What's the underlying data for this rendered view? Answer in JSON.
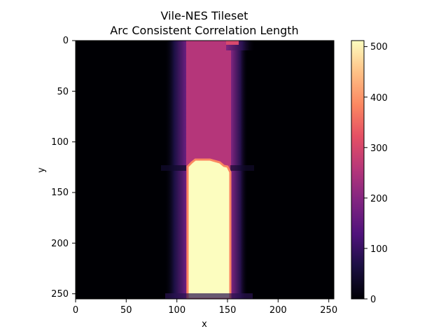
{
  "chart_data": {
    "type": "heatmap",
    "title": "Vile-NES Tileset",
    "subtitle": "Arc Consistent Correlation Length",
    "xlabel": "x",
    "ylabel": "y",
    "xlim": [
      0,
      255
    ],
    "ylim": [
      255,
      0
    ],
    "x_ticks": [
      0,
      50,
      100,
      150,
      200,
      250
    ],
    "y_ticks": [
      0,
      50,
      100,
      150,
      200,
      250
    ],
    "colormap": "magma",
    "colorbar": {
      "range": [
        0,
        512
      ],
      "ticks": [
        0,
        100,
        200,
        300,
        400,
        500
      ]
    },
    "regions": [
      {
        "name": "background",
        "x": [
          0,
          255
        ],
        "y": [
          0,
          255
        ],
        "value": 0
      },
      {
        "name": "left-halo",
        "x": [
          88,
          110
        ],
        "y": [
          0,
          255
        ],
        "value": 150
      },
      {
        "name": "magenta-column",
        "x": [
          110,
          160
        ],
        "y": [
          0,
          255
        ],
        "value": 270
      },
      {
        "name": "right-halo-top",
        "x": [
          160,
          180
        ],
        "y": [
          0,
          10
        ],
        "value": 150
      },
      {
        "name": "bright-block",
        "x": [
          112,
          152
        ],
        "y": [
          117,
          255
        ],
        "value": 512
      }
    ]
  },
  "axes": {
    "x_tick_labels": [
      "0",
      "50",
      "100",
      "150",
      "200",
      "250"
    ],
    "y_tick_labels": [
      "0",
      "50",
      "100",
      "150",
      "200",
      "250"
    ]
  },
  "colorbar": {
    "tick_labels": [
      "0",
      "100",
      "200",
      "300",
      "400",
      "500"
    ]
  }
}
